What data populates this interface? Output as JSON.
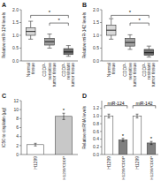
{
  "chart_data": [
    {
      "type": "box",
      "title": "A",
      "ylabel": "Relative miR-124 levels",
      "categories": [
        "Normal\ntissue",
        "CDDP-\nsensitive\ntumor tissue",
        "CDDP-\nresistant\ntumor tissue"
      ],
      "boxes": [
        {
          "med": 1.15,
          "q1": 1.0,
          "q3": 1.3,
          "whislo": 0.85,
          "whishi": 1.55
        },
        {
          "med": 0.75,
          "q1": 0.62,
          "q3": 0.88,
          "whislo": 0.5,
          "whishi": 1.05
        },
        {
          "med": 0.35,
          "q1": 0.25,
          "q3": 0.48,
          "whislo": 0.18,
          "whishi": 0.6
        }
      ],
      "colors": [
        "#d9d9d9",
        "#a0a0a0",
        "#707070"
      ],
      "ylim": [
        0.0,
        2.0
      ],
      "yticks": [
        {
          "value": 0.0,
          "label": "0.0"
        },
        0.5,
        {
          "value": 1.0,
          "label": "1.0"
        },
        1.5,
        {
          "value": 2.0,
          "label": "2.0"
        }
      ],
      "annotations": [
        {
          "text": "*",
          "from": 0,
          "to": 2,
          "y": 1.78
        },
        {
          "text": "*",
          "from": 1,
          "to": 2,
          "y": 1.48
        }
      ]
    },
    {
      "type": "box",
      "title": "B",
      "ylabel": "Relative miR-142 levels",
      "categories": [
        "Normal\ntissue",
        "CDDP-\nsensitive\ntumor tissue",
        "CDDP-\nresistant\ntumor tissue"
      ],
      "boxes": [
        {
          "med": 1.2,
          "q1": 1.0,
          "q3": 1.4,
          "whislo": 0.85,
          "whishi": 1.65
        },
        {
          "med": 0.72,
          "q1": 0.58,
          "q3": 0.88,
          "whislo": 0.45,
          "whishi": 1.02
        },
        {
          "med": 0.32,
          "q1": 0.22,
          "q3": 0.45,
          "whislo": 0.15,
          "whishi": 0.58
        }
      ],
      "colors": [
        "#d9d9d9",
        "#a0a0a0",
        "#707070"
      ],
      "ylim": [
        0.0,
        2.0
      ],
      "yticks": [
        {
          "value": 0.0,
          "label": "0.0"
        },
        0.5,
        {
          "value": 1.0,
          "label": "1.0"
        },
        1.5,
        {
          "value": 2.0,
          "label": "2.0"
        }
      ],
      "annotations": [
        {
          "text": "*",
          "from": 0,
          "to": 2,
          "y": 1.78
        },
        {
          "text": "*",
          "from": 1,
          "to": 2,
          "y": 1.48
        }
      ]
    },
    {
      "type": "bar",
      "title": "C",
      "ylabel": "IC50 to cisplatin (μg)",
      "categories": [
        "H1299",
        "H1299/CDDP"
      ],
      "values": [
        2.2,
        8.5
      ],
      "errors": [
        0.3,
        0.7
      ],
      "colors": [
        "#ffffff",
        "#c8c8c8"
      ],
      "ylim": [
        0,
        12
      ],
      "yticks": [
        0,
        2,
        4,
        6,
        8,
        10,
        12
      ],
      "annotations": [
        {
          "text": "*",
          "at": 1
        }
      ]
    },
    {
      "type": "bar",
      "title": "D",
      "ylabel": "Relative miRNA levels",
      "categories": [
        "H1299",
        "H1299/CDDP",
        "H1299",
        "H1299/CDDP"
      ],
      "values": [
        1.0,
        0.38,
        1.0,
        0.3
      ],
      "errors": [
        0.05,
        0.04,
        0.05,
        0.04
      ],
      "colors": [
        "#ffffff",
        "#808080",
        "#ffffff",
        "#808080"
      ],
      "ylim": [
        0,
        1.4
      ],
      "yticks": [
        {
          "value": 0.0,
          "label": "0.0"
        },
        0.2,
        0.4,
        0.6,
        0.8,
        {
          "value": 1.0,
          "label": "1.0"
        },
        1.2
      ],
      "annotations": [
        {
          "text": "*",
          "at": 1
        },
        {
          "text": "*",
          "at": 3
        },
        {
          "text": "miR-124",
          "from": 0,
          "to": 1,
          "y": 1.27
        },
        {
          "text": "miR-142",
          "from": 2,
          "to": 3,
          "y": 1.27
        }
      ]
    }
  ]
}
